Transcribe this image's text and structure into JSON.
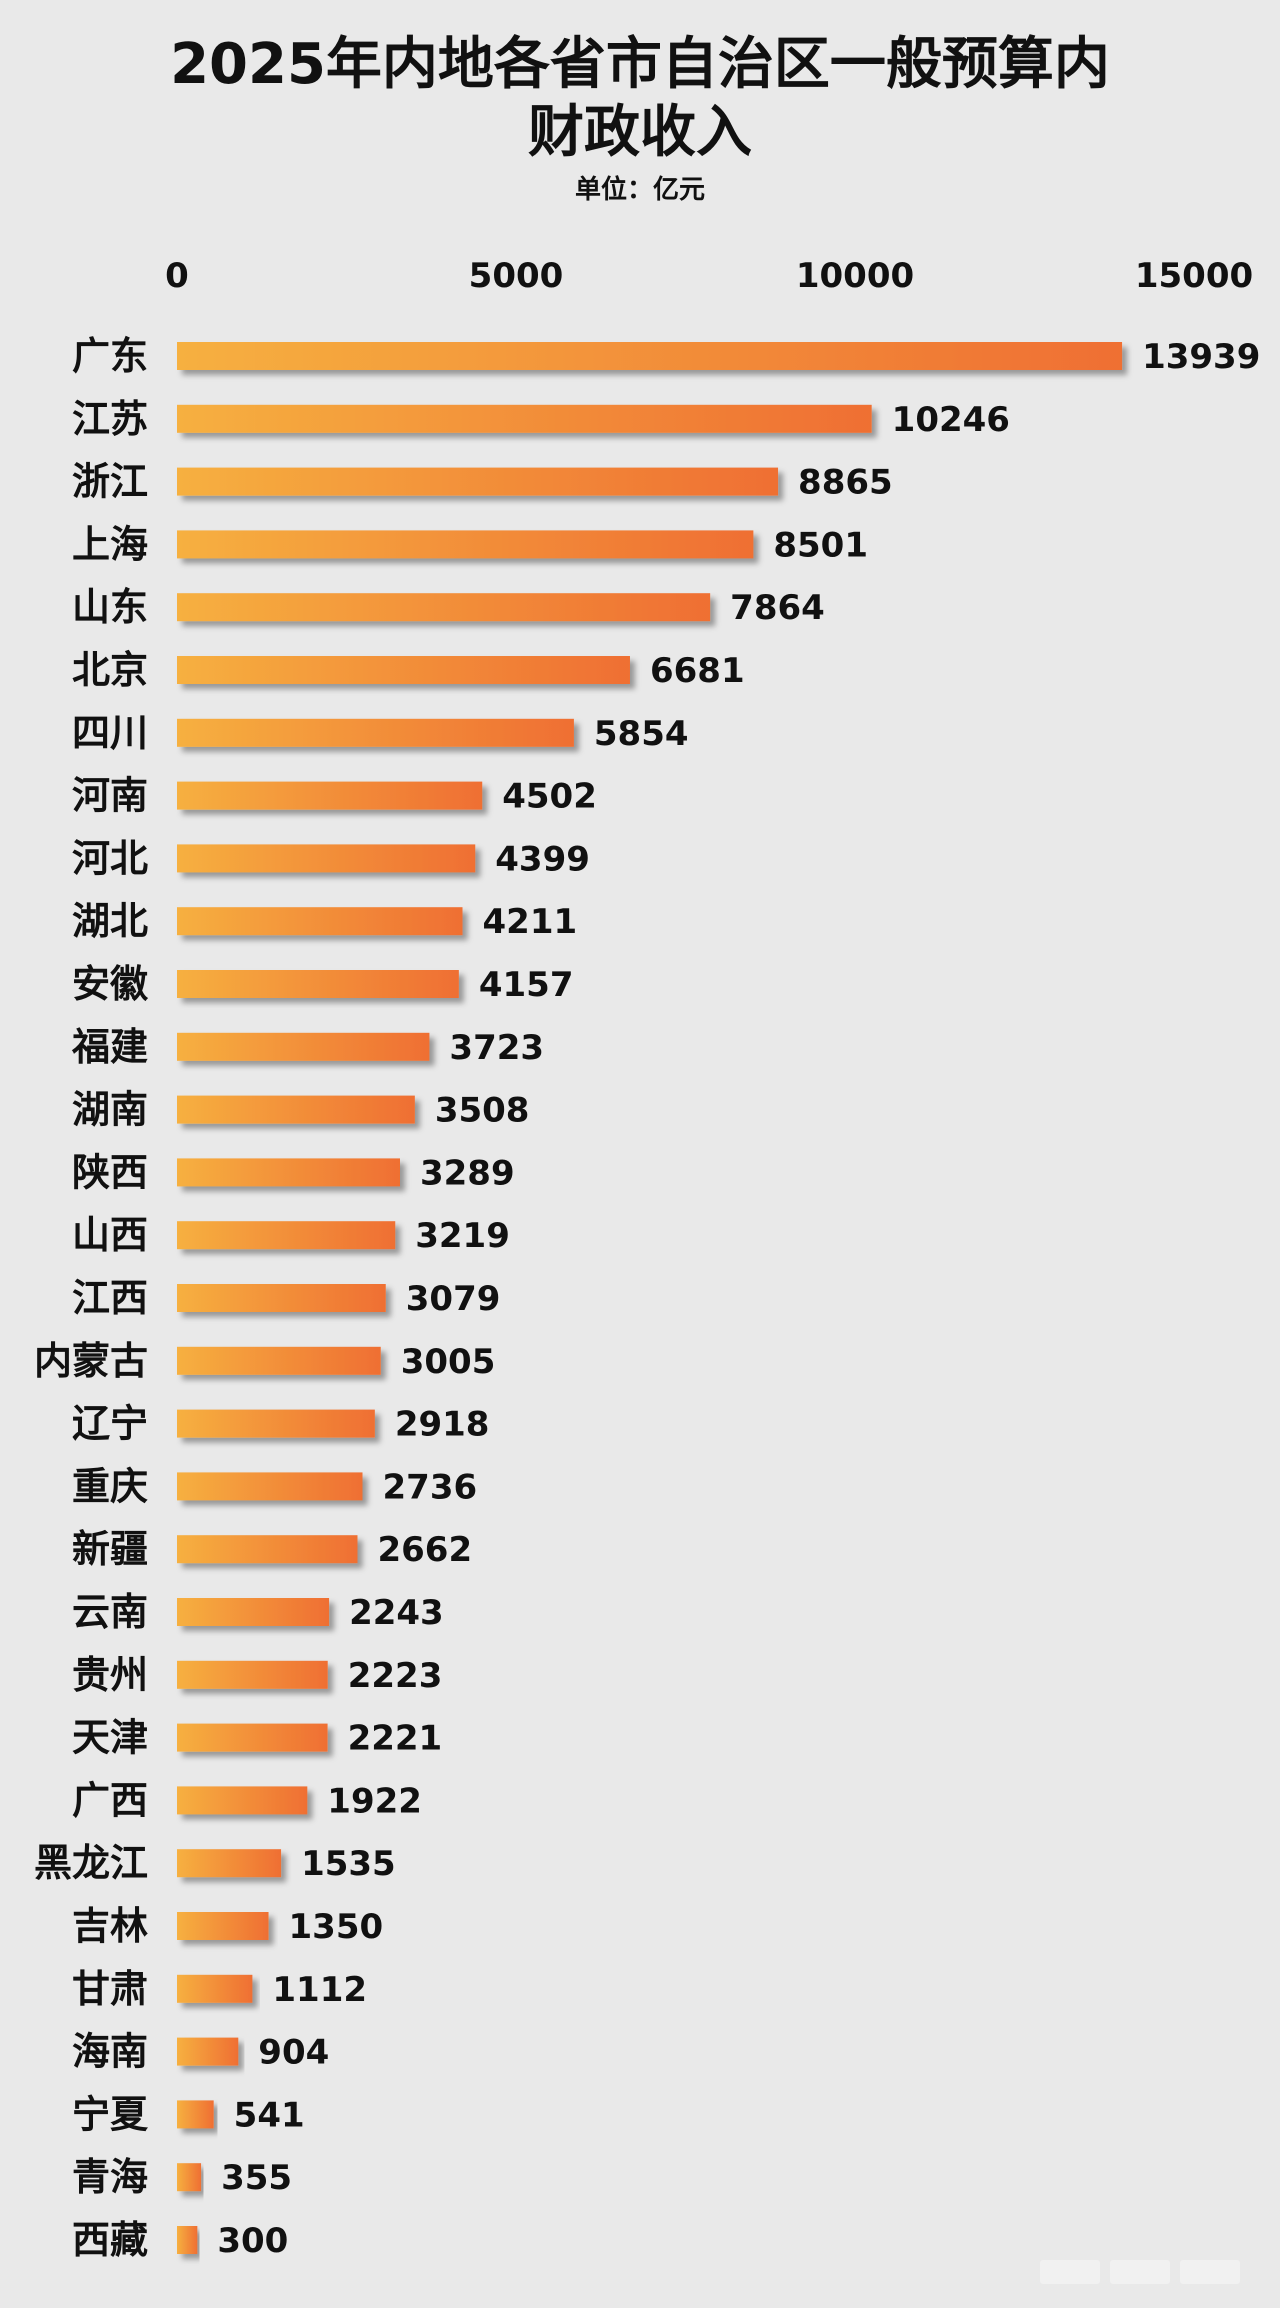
{
  "title_line1": "2025年内地各省市自治区一般预算内",
  "title_line2": "财政收入",
  "subtitle": "单位：亿元",
  "colors": {
    "bar_start": "#f6b040",
    "bar_end": "#ef6f33",
    "background": "#e9e9e9"
  },
  "chart_data": {
    "type": "bar",
    "orientation": "horizontal",
    "title": "2025年内地各省市自治区一般预算内财政收入",
    "subtitle": "单位：亿元",
    "xlim": [
      0,
      15000
    ],
    "xticks": [
      0,
      5000,
      10000,
      15000
    ],
    "axis_position": "top",
    "grid": false,
    "categories": [
      "广东",
      "江苏",
      "浙江",
      "上海",
      "山东",
      "北京",
      "四川",
      "河南",
      "河北",
      "湖北",
      "安徽",
      "福建",
      "湖南",
      "陕西",
      "山西",
      "江西",
      "内蒙古",
      "辽宁",
      "重庆",
      "新疆",
      "云南",
      "贵州",
      "天津",
      "广西",
      "黑龙江",
      "吉林",
      "甘肃",
      "海南",
      "宁夏",
      "青海",
      "西藏"
    ],
    "values": [
      13939,
      10246,
      8865,
      8501,
      7864,
      6681,
      5854,
      4502,
      4399,
      4211,
      4157,
      3723,
      3508,
      3289,
      3219,
      3079,
      3005,
      2918,
      2736,
      2662,
      2243,
      2223,
      2221,
      1922,
      1535,
      1350,
      1112,
      904,
      541,
      355,
      300
    ]
  }
}
